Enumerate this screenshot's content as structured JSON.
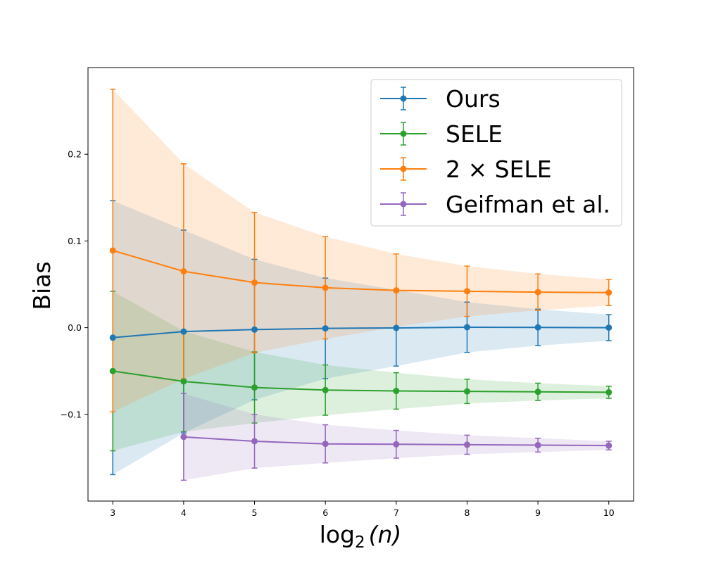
{
  "chart_data": {
    "type": "line",
    "xlabel_main": "log",
    "xlabel_sub": "2",
    "xlabel_arg": "(n)",
    "ylabel": "Bias",
    "xlim": [
      2.65,
      10.35
    ],
    "ylim": [
      -0.2,
      0.3
    ],
    "x_ticks": [
      3,
      4,
      5,
      6,
      7,
      8,
      9,
      10
    ],
    "y_ticks": [
      -0.1,
      0.0,
      0.1,
      0.2
    ],
    "x_tick_labels": [
      "3",
      "4",
      "5",
      "6",
      "7",
      "8",
      "9",
      "10"
    ],
    "y_tick_labels": [
      "−0.1",
      "0.0",
      "0.1",
      "0.2"
    ],
    "legend_position": "top-right",
    "series": [
      {
        "name": "Ours",
        "color": "#1f77b4",
        "x": [
          3,
          4,
          5,
          6,
          7,
          8,
          9,
          10
        ],
        "y": [
          -0.0115,
          -0.0045,
          -0.0022,
          -0.0008,
          -0.0003,
          0.0005,
          0.0003,
          0.0
        ],
        "err": [
          0.158,
          0.117,
          0.081,
          0.058,
          0.044,
          0.029,
          0.021,
          0.015
        ]
      },
      {
        "name": "SELE",
        "color": "#2ca02c",
        "x": [
          3,
          4,
          5,
          6,
          7,
          8,
          9,
          10
        ],
        "y": [
          -0.05,
          -0.062,
          -0.069,
          -0.072,
          -0.073,
          -0.0735,
          -0.074,
          -0.0745
        ],
        "err": [
          0.092,
          0.058,
          0.041,
          0.029,
          0.021,
          0.014,
          0.01,
          0.007
        ]
      },
      {
        "name": "2 × SELE",
        "label_main": "2",
        "label_times": "×",
        "label_rest": "SELE",
        "color": "#ff7f0e",
        "x": [
          3,
          4,
          5,
          6,
          7,
          8,
          9,
          10
        ],
        "y": [
          0.089,
          0.065,
          0.052,
          0.046,
          0.043,
          0.042,
          0.041,
          0.0405
        ],
        "err": [
          0.186,
          0.124,
          0.081,
          0.059,
          0.042,
          0.029,
          0.021,
          0.015
        ]
      },
      {
        "name": "Geifman et al.",
        "color": "#9467bd",
        "x": [
          4,
          5,
          6,
          7,
          8,
          9,
          10
        ],
        "y": [
          -0.126,
          -0.131,
          -0.134,
          -0.1345,
          -0.135,
          -0.1355,
          -0.136
        ],
        "err": [
          0.05,
          0.031,
          0.022,
          0.016,
          0.011,
          0.008,
          0.005
        ]
      }
    ]
  }
}
